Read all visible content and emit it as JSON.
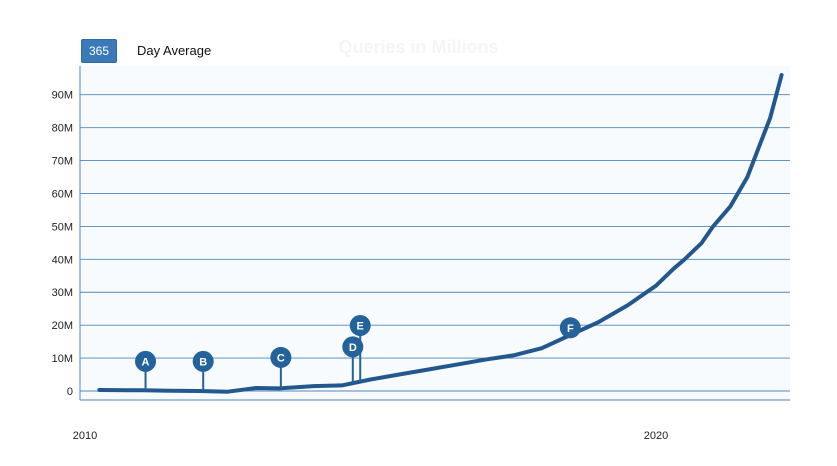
{
  "toolbar": {
    "range_button": "365",
    "range_label": "Day Average"
  },
  "chart_data": {
    "type": "line",
    "title": "Queries in Millions",
    "xlim": [
      2010,
      2022.5
    ],
    "ylim": [
      -3,
      100
    ],
    "y_ticks": [
      0,
      10,
      20,
      30,
      40,
      50,
      60,
      70,
      80,
      90
    ],
    "y_tick_labels": [
      "0",
      "10M",
      "20M",
      "30M",
      "40M",
      "50M",
      "60M",
      "70M",
      "80M",
      "90M"
    ],
    "x_ticks": [
      2010,
      2020
    ],
    "x_tick_labels": [
      "2010",
      "2020"
    ],
    "grid": true,
    "series": [
      {
        "x": [
          2010.25,
          2011,
          2011.5,
          2012,
          2012.5,
          2013,
          2013.4,
          2014,
          2014.5,
          2015,
          2015.5,
          2016,
          2016.5,
          2017,
          2017.5,
          2018,
          2018.5,
          2019,
          2019.5,
          2020,
          2020.3,
          2020.5,
          2020.8,
          2021,
          2021.3,
          2021.6,
          2022,
          2022.2
        ],
        "y": [
          0.3,
          0.2,
          0.1,
          0,
          -0.2,
          0.9,
          0.8,
          1.5,
          1.7,
          3.5,
          5,
          6.5,
          8,
          9.5,
          10.8,
          13,
          17,
          21,
          26,
          32,
          37,
          40,
          45,
          50,
          56,
          65,
          83,
          96
        ]
      }
    ],
    "annotations": [
      {
        "label": "A",
        "x": 2011.06,
        "y": 9
      },
      {
        "label": "B",
        "x": 2012.07,
        "y": 9
      },
      {
        "label": "C",
        "x": 2013.43,
        "y": 10.2
      },
      {
        "label": "D",
        "x": 2014.69,
        "y": 13.4
      },
      {
        "label": "E",
        "x": 2014.82,
        "y": 19.9
      },
      {
        "label": "F",
        "x": 2018.5,
        "y": 19.2
      }
    ]
  },
  "colors": {
    "line": "#23588e",
    "grid": "#4f86b8",
    "plot_bg": "#f8fbfd",
    "marker": "#23629b"
  }
}
